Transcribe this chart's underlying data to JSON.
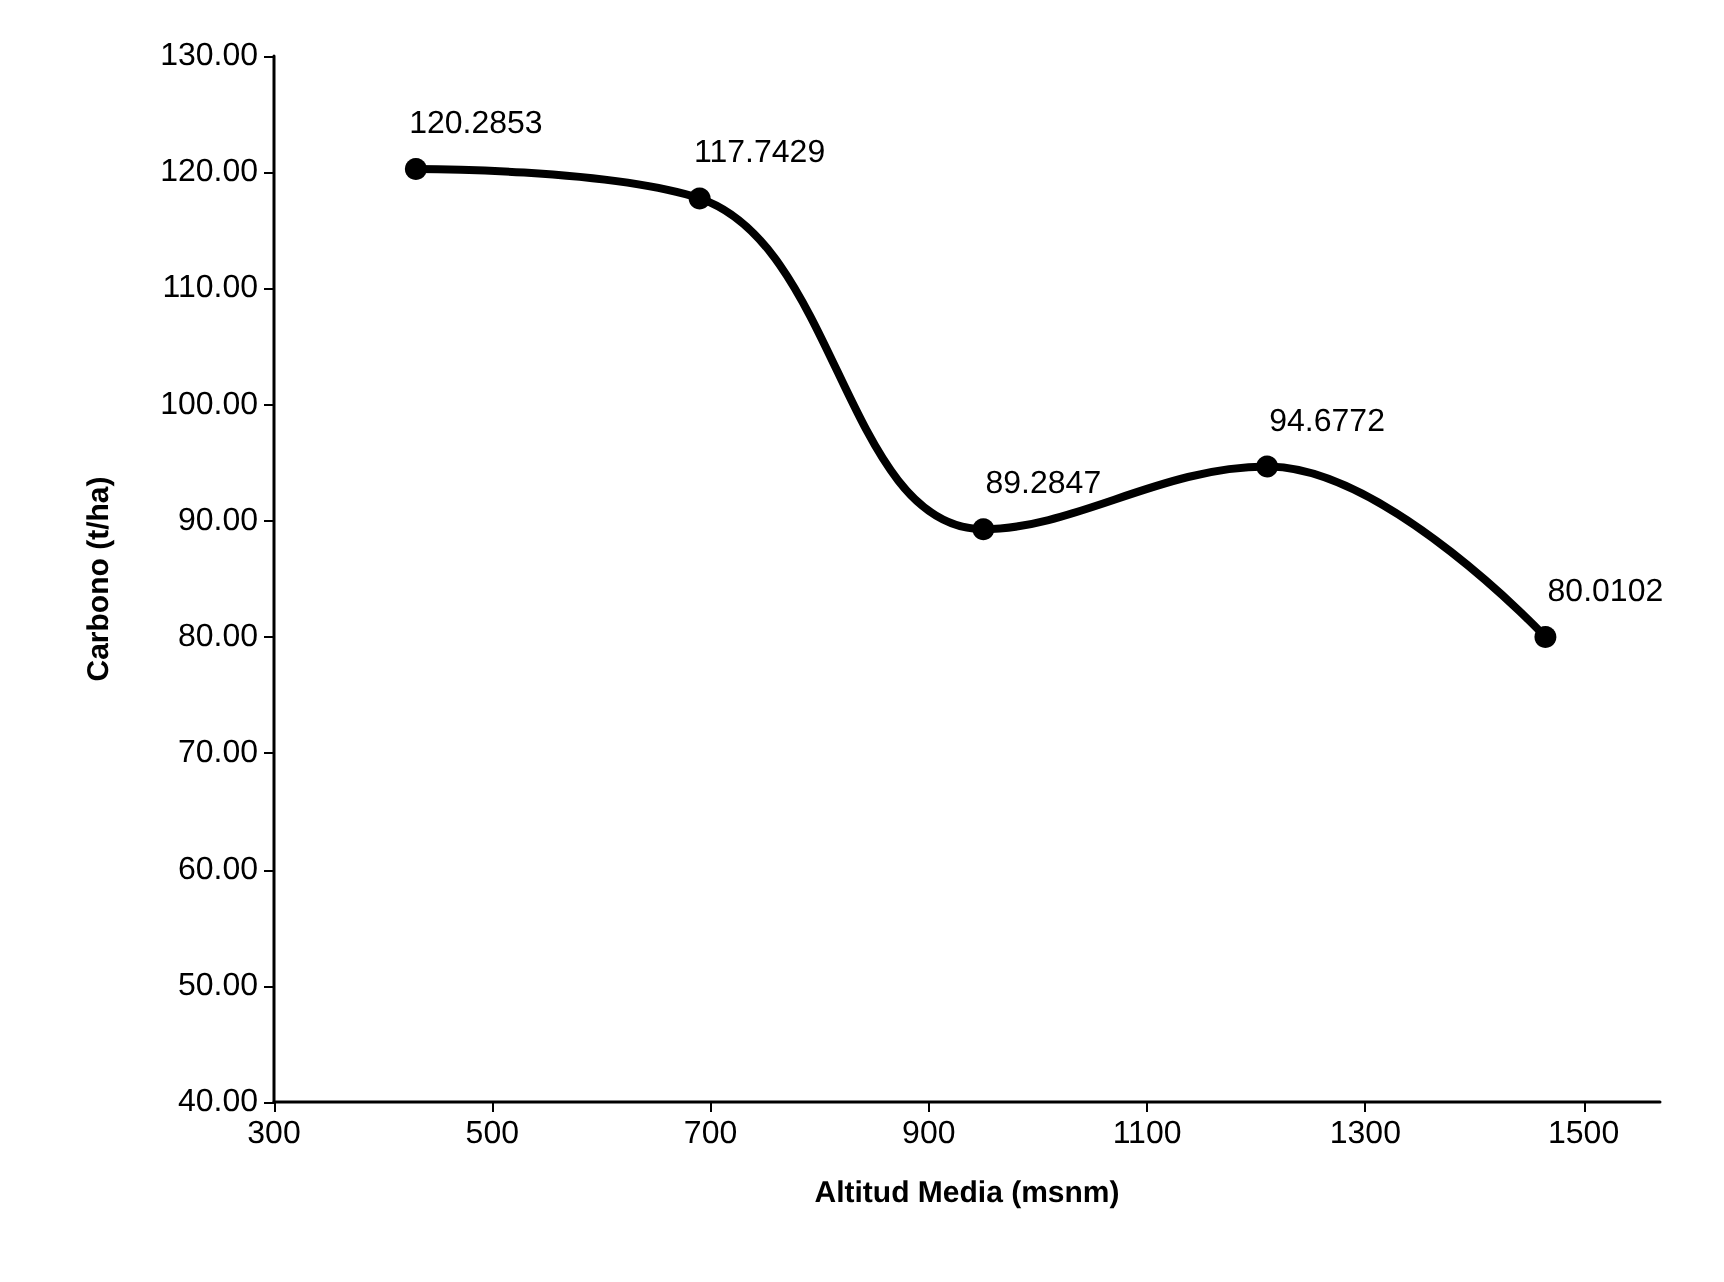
{
  "chart_data": {
    "type": "line",
    "xlabel": "Altitud Media (msnm)",
    "ylabel": "Carbono (t/ha)",
    "x": [
      430,
      690,
      950,
      1210,
      1465
    ],
    "series": [
      {
        "color": "#000000",
        "values": [
          120.2853,
          117.7429,
          89.2847,
          94.6772,
          80.0102
        ]
      }
    ],
    "xlim": [
      300,
      1570
    ],
    "xticks": [
      300,
      500,
      700,
      900,
      1100,
      1300,
      1500
    ],
    "ylim": [
      40,
      130
    ],
    "yticks": [
      {
        "value": 40,
        "label": "40.00"
      },
      {
        "value": 50,
        "label": "50.00"
      },
      {
        "value": 60,
        "label": "60.00"
      },
      {
        "value": 70,
        "label": "70.00"
      },
      {
        "value": 80,
        "label": "80.00"
      },
      {
        "value": 90,
        "label": "90.00"
      },
      {
        "value": 100,
        "label": "100.00"
      },
      {
        "value": 110,
        "label": "110.00"
      },
      {
        "value": 120,
        "label": "120.00"
      },
      {
        "value": 130,
        "label": "130.00"
      }
    ],
    "data_labels": true,
    "marker": "circle",
    "line_style": "solid"
  }
}
